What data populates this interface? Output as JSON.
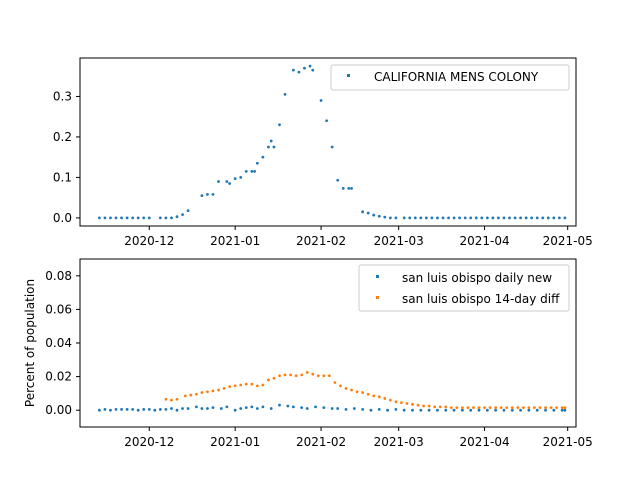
{
  "chart_data": [
    {
      "type": "scatter",
      "ylim": [
        -0.02,
        0.395
      ],
      "xlim": [
        "2020-11-06",
        "2021-05-04"
      ],
      "x_ticks": [
        "2020-12-01",
        "2021-01-01",
        "2021-02-01",
        "2021-03-01",
        "2021-04-01",
        "2021-05-01"
      ],
      "x_tick_labels": [
        "2020-12",
        "2021-01",
        "2021-02",
        "2021-03",
        "2021-04",
        "2021-05"
      ],
      "y_ticks": [
        0.0,
        0.1,
        0.2,
        0.3
      ],
      "y_tick_labels": [
        "0.0",
        "0.1",
        "0.2",
        "0.3"
      ],
      "ylabel": "",
      "grid": false,
      "legend_position": "top-right",
      "series": [
        {
          "name": "CALIFORNIA MENS COLONY",
          "color": "#1f77b4",
          "points": [
            [
              "2020-11-13",
              0.0
            ],
            [
              "2020-11-15",
              0.0
            ],
            [
              "2020-11-17",
              0.0
            ],
            [
              "2020-11-19",
              0.0
            ],
            [
              "2020-11-21",
              0.0
            ],
            [
              "2020-11-23",
              0.0
            ],
            [
              "2020-11-25",
              0.0
            ],
            [
              "2020-11-27",
              0.0
            ],
            [
              "2020-11-29",
              0.0
            ],
            [
              "2020-12-01",
              0.0
            ],
            [
              "2020-12-05",
              0.0
            ],
            [
              "2020-12-07",
              0.0
            ],
            [
              "2020-12-09",
              0.0
            ],
            [
              "2020-12-11",
              0.003
            ],
            [
              "2020-12-13",
              0.008
            ],
            [
              "2020-12-15",
              0.018
            ],
            [
              "2020-12-20",
              0.055
            ],
            [
              "2020-12-22",
              0.058
            ],
            [
              "2020-12-24",
              0.058
            ],
            [
              "2020-12-26",
              0.09
            ],
            [
              "2020-12-29",
              0.09
            ],
            [
              "2020-12-30",
              0.085
            ],
            [
              "2021-01-01",
              0.097
            ],
            [
              "2021-01-03",
              0.1
            ],
            [
              "2021-01-05",
              0.115
            ],
            [
              "2021-01-07",
              0.115
            ],
            [
              "2021-01-08",
              0.115
            ],
            [
              "2021-01-09",
              0.135
            ],
            [
              "2021-01-11",
              0.15
            ],
            [
              "2021-01-13",
              0.175
            ],
            [
              "2021-01-14",
              0.19
            ],
            [
              "2021-01-15",
              0.175
            ],
            [
              "2021-01-17",
              0.23
            ],
            [
              "2021-01-19",
              0.305
            ],
            [
              "2021-01-22",
              0.365
            ],
            [
              "2021-01-24",
              0.36
            ],
            [
              "2021-01-26",
              0.37
            ],
            [
              "2021-01-28",
              0.375
            ],
            [
              "2021-01-29",
              0.365
            ],
            [
              "2021-02-01",
              0.29
            ],
            [
              "2021-02-03",
              0.24
            ],
            [
              "2021-02-05",
              0.175
            ],
            [
              "2021-02-07",
              0.093
            ],
            [
              "2021-02-09",
              0.073
            ],
            [
              "2021-02-11",
              0.073
            ],
            [
              "2021-02-12",
              0.073
            ],
            [
              "2021-02-16",
              0.015
            ],
            [
              "2021-02-18",
              0.012
            ],
            [
              "2021-02-20",
              0.007
            ],
            [
              "2021-02-22",
              0.004
            ],
            [
              "2021-02-24",
              0.002
            ],
            [
              "2021-02-26",
              0.0
            ],
            [
              "2021-02-28",
              0.0
            ],
            [
              "2021-03-03",
              0.0
            ],
            [
              "2021-03-05",
              0.0
            ],
            [
              "2021-03-07",
              0.0
            ],
            [
              "2021-03-09",
              0.0
            ],
            [
              "2021-03-11",
              0.0
            ],
            [
              "2021-03-13",
              0.0
            ],
            [
              "2021-03-15",
              0.0
            ],
            [
              "2021-03-17",
              0.0
            ],
            [
              "2021-03-19",
              0.0
            ],
            [
              "2021-03-21",
              0.0
            ],
            [
              "2021-03-23",
              0.0
            ],
            [
              "2021-03-25",
              0.0
            ],
            [
              "2021-03-27",
              0.0
            ],
            [
              "2021-03-29",
              0.0
            ],
            [
              "2021-03-31",
              0.0
            ],
            [
              "2021-04-02",
              0.0
            ],
            [
              "2021-04-04",
              0.0
            ],
            [
              "2021-04-06",
              0.0
            ],
            [
              "2021-04-08",
              0.0
            ],
            [
              "2021-04-10",
              0.0
            ],
            [
              "2021-04-12",
              0.0
            ],
            [
              "2021-04-14",
              0.0
            ],
            [
              "2021-04-16",
              0.0
            ],
            [
              "2021-04-18",
              0.0
            ],
            [
              "2021-04-20",
              0.0
            ],
            [
              "2021-04-22",
              0.0
            ],
            [
              "2021-04-24",
              0.0
            ],
            [
              "2021-04-26",
              0.0
            ],
            [
              "2021-04-28",
              0.0
            ],
            [
              "2021-04-30",
              0.0
            ]
          ]
        }
      ]
    },
    {
      "type": "scatter",
      "ylim": [
        -0.01,
        0.09
      ],
      "xlim": [
        "2020-11-06",
        "2021-05-04"
      ],
      "x_ticks": [
        "2020-12-01",
        "2021-01-01",
        "2021-02-01",
        "2021-03-01",
        "2021-04-01",
        "2021-05-01"
      ],
      "x_tick_labels": [
        "2020-12",
        "2021-01",
        "2021-02",
        "2021-03",
        "2021-04",
        "2021-05"
      ],
      "y_ticks": [
        0.0,
        0.02,
        0.04,
        0.06,
        0.08
      ],
      "y_tick_labels": [
        "0.00",
        "0.02",
        "0.04",
        "0.06",
        "0.08"
      ],
      "ylabel": "Percent of population",
      "grid": false,
      "legend_position": "top-right",
      "series": [
        {
          "name": "san luis obispo daily new",
          "color": "#1f77b4",
          "points": [
            [
              "2020-11-13",
              0.0
            ],
            [
              "2020-11-15",
              0.0005
            ],
            [
              "2020-11-17",
              0.0
            ],
            [
              "2020-11-19",
              0.0005
            ],
            [
              "2020-11-21",
              0.0005
            ],
            [
              "2020-11-23",
              0.0005
            ],
            [
              "2020-11-25",
              0.0005
            ],
            [
              "2020-11-27",
              0.0
            ],
            [
              "2020-11-29",
              0.0005
            ],
            [
              "2020-12-01",
              0.0005
            ],
            [
              "2020-12-03",
              0.0
            ],
            [
              "2020-12-05",
              0.0005
            ],
            [
              "2020-12-07",
              0.0005
            ],
            [
              "2020-12-09",
              0.001
            ],
            [
              "2020-12-11",
              0.0
            ],
            [
              "2020-12-13",
              0.001
            ],
            [
              "2020-12-15",
              0.001
            ],
            [
              "2020-12-18",
              0.002
            ],
            [
              "2020-12-20",
              0.001
            ],
            [
              "2020-12-22",
              0.001
            ],
            [
              "2020-12-24",
              0.0015
            ],
            [
              "2020-12-27",
              0.001
            ],
            [
              "2020-12-29",
              0.002
            ],
            [
              "2021-01-01",
              0.0
            ],
            [
              "2021-01-03",
              0.001
            ],
            [
              "2021-01-05",
              0.0015
            ],
            [
              "2021-01-07",
              0.002
            ],
            [
              "2021-01-09",
              0.001
            ],
            [
              "2021-01-11",
              0.002
            ],
            [
              "2021-01-14",
              0.001
            ],
            [
              "2021-01-17",
              0.003
            ],
            [
              "2021-01-20",
              0.0025
            ],
            [
              "2021-01-22",
              0.002
            ],
            [
              "2021-01-25",
              0.0015
            ],
            [
              "2021-01-27",
              0.001
            ],
            [
              "2021-01-30",
              0.002
            ],
            [
              "2021-02-02",
              0.0015
            ],
            [
              "2021-02-05",
              0.001
            ],
            [
              "2021-02-07",
              0.001
            ],
            [
              "2021-02-10",
              0.0005
            ],
            [
              "2021-02-13",
              0.001
            ],
            [
              "2021-02-16",
              0.0005
            ],
            [
              "2021-02-19",
              0.0
            ],
            [
              "2021-02-22",
              0.0005
            ],
            [
              "2021-02-25",
              0.0
            ],
            [
              "2021-02-28",
              0.0005
            ],
            [
              "2021-03-03",
              0.0
            ],
            [
              "2021-03-06",
              0.0
            ],
            [
              "2021-03-09",
              0.0
            ],
            [
              "2021-03-12",
              0.0
            ],
            [
              "2021-03-15",
              0.0
            ],
            [
              "2021-03-18",
              0.0
            ],
            [
              "2021-03-21",
              0.0
            ],
            [
              "2021-03-24",
              0.0
            ],
            [
              "2021-03-27",
              0.0
            ],
            [
              "2021-03-30",
              0.0
            ],
            [
              "2021-04-02",
              0.0
            ],
            [
              "2021-04-05",
              0.0
            ],
            [
              "2021-04-08",
              0.0
            ],
            [
              "2021-04-11",
              0.0
            ],
            [
              "2021-04-14",
              0.0
            ],
            [
              "2021-04-17",
              0.0
            ],
            [
              "2021-04-20",
              0.0
            ],
            [
              "2021-04-23",
              0.0
            ],
            [
              "2021-04-26",
              0.0
            ],
            [
              "2021-04-29",
              0.0
            ],
            [
              "2021-04-30",
              0.0
            ]
          ]
        },
        {
          "name": "san luis obispo 14-day diff",
          "color": "#ff7f0e",
          "points": [
            [
              "2020-12-07",
              0.0065
            ],
            [
              "2020-12-09",
              0.006
            ],
            [
              "2020-12-11",
              0.0065
            ],
            [
              "2020-12-14",
              0.0085
            ],
            [
              "2020-12-16",
              0.009
            ],
            [
              "2020-12-18",
              0.0095
            ],
            [
              "2020-12-20",
              0.0105
            ],
            [
              "2020-12-22",
              0.011
            ],
            [
              "2020-12-24",
              0.0115
            ],
            [
              "2020-12-26",
              0.012
            ],
            [
              "2020-12-28",
              0.013
            ],
            [
              "2020-12-30",
              0.014
            ],
            [
              "2021-01-01",
              0.0145
            ],
            [
              "2021-01-03",
              0.015
            ],
            [
              "2021-01-05",
              0.0155
            ],
            [
              "2021-01-07",
              0.0155
            ],
            [
              "2021-01-09",
              0.0145
            ],
            [
              "2021-01-11",
              0.015
            ],
            [
              "2021-01-13",
              0.018
            ],
            [
              "2021-01-15",
              0.019
            ],
            [
              "2021-01-17",
              0.0205
            ],
            [
              "2021-01-19",
              0.021
            ],
            [
              "2021-01-21",
              0.021
            ],
            [
              "2021-01-23",
              0.0205
            ],
            [
              "2021-01-25",
              0.021
            ],
            [
              "2021-01-27",
              0.0225
            ],
            [
              "2021-01-29",
              0.0215
            ],
            [
              "2021-01-31",
              0.0205
            ],
            [
              "2021-02-02",
              0.0205
            ],
            [
              "2021-02-04",
              0.0205
            ],
            [
              "2021-02-06",
              0.0165
            ],
            [
              "2021-02-08",
              0.0145
            ],
            [
              "2021-02-10",
              0.013
            ],
            [
              "2021-02-12",
              0.012
            ],
            [
              "2021-02-14",
              0.011
            ],
            [
              "2021-02-16",
              0.0105
            ],
            [
              "2021-02-18",
              0.0095
            ],
            [
              "2021-02-20",
              0.0085
            ],
            [
              "2021-02-22",
              0.008
            ],
            [
              "2021-02-24",
              0.007
            ],
            [
              "2021-02-26",
              0.006
            ],
            [
              "2021-02-28",
              0.005
            ],
            [
              "2021-03-02",
              0.0045
            ],
            [
              "2021-03-04",
              0.004
            ],
            [
              "2021-03-06",
              0.0035
            ],
            [
              "2021-03-08",
              0.003
            ],
            [
              "2021-03-10",
              0.0025
            ],
            [
              "2021-03-12",
              0.0025
            ],
            [
              "2021-03-14",
              0.002
            ],
            [
              "2021-03-16",
              0.002
            ],
            [
              "2021-03-18",
              0.002
            ],
            [
              "2021-03-20",
              0.0015
            ],
            [
              "2021-03-22",
              0.0015
            ],
            [
              "2021-03-24",
              0.0015
            ],
            [
              "2021-03-26",
              0.0015
            ],
            [
              "2021-03-28",
              0.0015
            ],
            [
              "2021-03-30",
              0.0015
            ],
            [
              "2021-04-01",
              0.0015
            ],
            [
              "2021-04-03",
              0.0015
            ],
            [
              "2021-04-05",
              0.0015
            ],
            [
              "2021-04-07",
              0.0015
            ],
            [
              "2021-04-09",
              0.0015
            ],
            [
              "2021-04-11",
              0.0015
            ],
            [
              "2021-04-13",
              0.0015
            ],
            [
              "2021-04-15",
              0.0015
            ],
            [
              "2021-04-17",
              0.0015
            ],
            [
              "2021-04-19",
              0.0015
            ],
            [
              "2021-04-21",
              0.0015
            ],
            [
              "2021-04-23",
              0.0015
            ],
            [
              "2021-04-25",
              0.0015
            ],
            [
              "2021-04-27",
              0.0015
            ],
            [
              "2021-04-29",
              0.0015
            ],
            [
              "2021-04-30",
              0.0015
            ]
          ]
        }
      ]
    }
  ]
}
